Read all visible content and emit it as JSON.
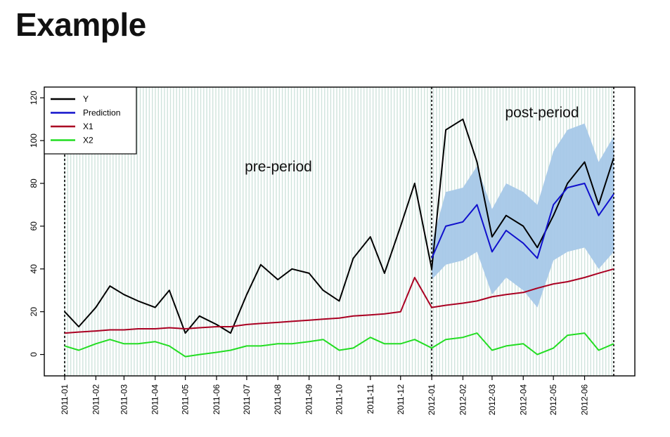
{
  "page": {
    "title": "Example"
  },
  "chart_data": {
    "type": "line",
    "title": "",
    "xlabel": "",
    "ylabel": "",
    "ylim": [
      -10,
      125
    ],
    "xlim": [
      "2011-01-01",
      "2012-06-30"
    ],
    "x_tick_labels": [
      "2011-01",
      "2011-02",
      "2011-03",
      "2011-04",
      "2011-05",
      "2011-06",
      "2011-07",
      "2011-08",
      "2011-09",
      "2011-10",
      "2011-11",
      "2011-12",
      "2012-01",
      "2012-02",
      "2012-03",
      "2012-04",
      "2012-05",
      "2012-06"
    ],
    "y_ticks": [
      0,
      20,
      40,
      60,
      80,
      100,
      120
    ],
    "grid": "vertical",
    "legend": {
      "placement": "top-left"
    },
    "x": [
      "2011-01-01",
      "2011-01-15",
      "2011-02-01",
      "2011-02-15",
      "2011-03-01",
      "2011-03-15",
      "2011-04-01",
      "2011-04-15",
      "2011-05-01",
      "2011-05-15",
      "2011-06-01",
      "2011-06-15",
      "2011-07-01",
      "2011-07-15",
      "2011-08-01",
      "2011-08-15",
      "2011-09-01",
      "2011-09-15",
      "2011-10-01",
      "2011-10-15",
      "2011-11-01",
      "2011-11-15",
      "2011-12-01",
      "2011-12-15",
      "2012-01-01",
      "2012-01-15",
      "2012-02-01",
      "2012-02-15",
      "2012-03-01",
      "2012-03-15",
      "2012-04-01",
      "2012-04-15",
      "2012-05-01",
      "2012-05-15",
      "2012-06-01",
      "2012-06-15",
      "2012-06-30"
    ],
    "series": [
      {
        "name": "Y",
        "color": "#000000",
        "values": [
          20,
          13,
          22,
          32,
          28,
          25,
          22,
          30,
          10,
          18,
          14,
          10,
          28,
          42,
          35,
          40,
          38,
          30,
          25,
          45,
          55,
          38,
          60,
          80,
          40,
          105,
          110,
          90,
          55,
          65,
          60,
          50,
          65,
          80,
          90,
          70,
          92
        ]
      },
      {
        "name": "Prediction",
        "color": "#1010cc",
        "values": [
          null,
          null,
          null,
          null,
          null,
          null,
          null,
          null,
          null,
          null,
          null,
          null,
          null,
          null,
          null,
          null,
          null,
          null,
          null,
          null,
          null,
          null,
          null,
          null,
          45,
          60,
          62,
          70,
          48,
          58,
          52,
          45,
          70,
          78,
          80,
          65,
          75
        ]
      },
      {
        "name": "X1",
        "color": "#aa0022",
        "values": [
          10,
          10.5,
          11,
          11.5,
          11.5,
          12,
          12,
          12.5,
          12,
          12.5,
          13,
          13,
          14,
          14.5,
          15,
          15.5,
          16,
          16.5,
          17,
          18,
          18.5,
          19,
          20,
          36,
          22,
          23,
          24,
          25,
          27,
          28,
          29,
          31,
          33,
          34,
          36,
          38,
          40
        ]
      },
      {
        "name": "X2",
        "color": "#22dd22",
        "values": [
          4,
          2,
          5,
          7,
          5,
          5,
          6,
          4,
          -1,
          0,
          1,
          2,
          4,
          4,
          5,
          5,
          6,
          7,
          2,
          3,
          8,
          5,
          5,
          7,
          3,
          7,
          8,
          10,
          2,
          4,
          5,
          0,
          3,
          9,
          10,
          2,
          5
        ]
      }
    ],
    "prediction_interval": {
      "lower": [
        null,
        null,
        null,
        null,
        null,
        null,
        null,
        null,
        null,
        null,
        null,
        null,
        null,
        null,
        null,
        null,
        null,
        null,
        null,
        null,
        null,
        null,
        null,
        null,
        35,
        42,
        44,
        48,
        28,
        36,
        30,
        22,
        44,
        48,
        50,
        40,
        48
      ],
      "upper": [
        null,
        null,
        null,
        null,
        null,
        null,
        null,
        null,
        null,
        null,
        null,
        null,
        null,
        null,
        null,
        null,
        null,
        null,
        null,
        null,
        null,
        null,
        null,
        null,
        52,
        76,
        78,
        88,
        68,
        80,
        76,
        70,
        95,
        105,
        108,
        90,
        102
      ],
      "color": "#a6c8e8"
    },
    "annotations": [
      {
        "text": "pre-period"
      },
      {
        "text": "post-period"
      }
    ],
    "vlines": [
      "2011-01-01",
      "2012-01-01",
      "2012-06-30"
    ]
  }
}
